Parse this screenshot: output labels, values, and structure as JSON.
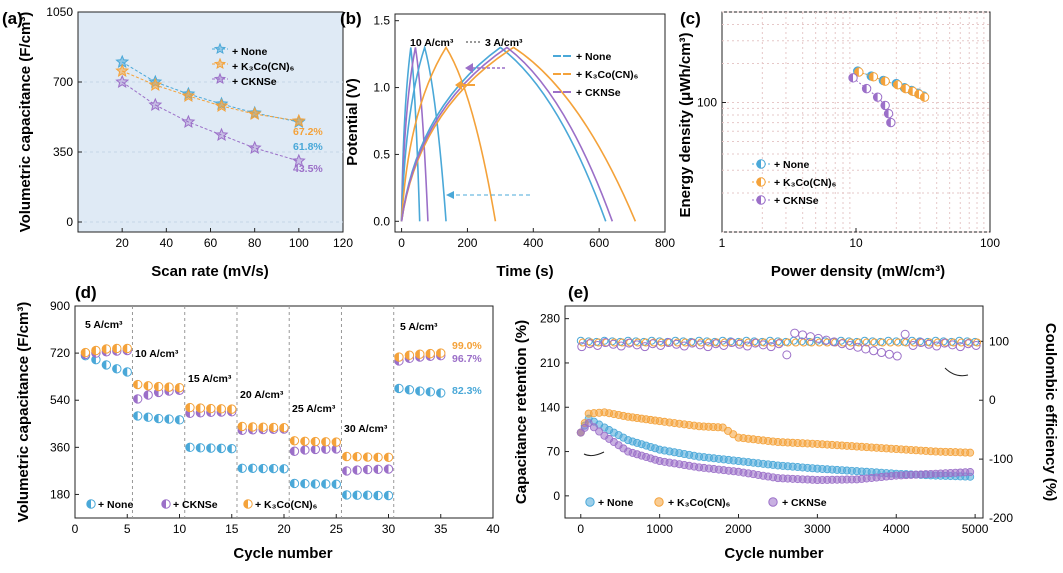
{
  "colors": {
    "none": "#4aa8d8",
    "k3co": "#f4a23a",
    "ckn": "#9b6fc8"
  },
  "panels": {
    "a": {
      "letter": "(a)"
    },
    "b": {
      "letter": "(b)"
    },
    "c": {
      "letter": "(c)"
    },
    "d": {
      "letter": "(d)"
    },
    "e": {
      "letter": "(e)"
    }
  },
  "chart_data": [
    {
      "id": "a",
      "type": "line",
      "title": "",
      "xlabel": "Scan rate (mV/s)",
      "ylabel": "Volumetric capacitance (F/cm³)",
      "xlim": [
        0,
        120
      ],
      "ylim": [
        -50,
        1050
      ],
      "xticks": [
        20,
        40,
        60,
        80,
        100,
        120
      ],
      "yticks": [
        0,
        350,
        700,
        1050
      ],
      "x": [
        20,
        35,
        50,
        65,
        80,
        100
      ],
      "series": [
        {
          "name": "+ None",
          "values": [
            800,
            700,
            640,
            590,
            545,
            500
          ],
          "label": "61.8%",
          "marker": "star"
        },
        {
          "name": "+ K₃Co(CN)₆",
          "values": [
            755,
            685,
            630,
            580,
            540,
            505
          ],
          "label": "67.2%",
          "marker": "star"
        },
        {
          "name": "+ CKNSe",
          "values": [
            700,
            585,
            500,
            435,
            370,
            305
          ],
          "label": "43.5%",
          "marker": "star"
        }
      ]
    },
    {
      "id": "b",
      "type": "line",
      "title": "",
      "xlabel": "Time (s)",
      "ylabel": "Potential (V)",
      "xlim": [
        -20,
        800
      ],
      "ylim": [
        -0.08,
        1.55
      ],
      "xticks": [
        0,
        200,
        400,
        600,
        800
      ],
      "yticks": [
        0.0,
        0.5,
        1.0,
        1.5
      ],
      "annotations": [
        "10 A/cm³",
        "3 A/cm³"
      ],
      "legend": [
        "+ None",
        "+ K₃Co(CN)₆",
        "+ CKNSe"
      ],
      "series": [
        {
          "group": "10",
          "series_color": "none",
          "x": [
            0,
            28,
            55
          ],
          "y": [
            0,
            1.3,
            0
          ]
        },
        {
          "group": "10",
          "series_color": "ckn",
          "x": [
            0,
            42,
            80
          ],
          "y": [
            0,
            1.3,
            0
          ]
        },
        {
          "group": "10",
          "series_color": "none",
          "x": [
            0,
            70,
            135
          ],
          "y": [
            0,
            1.3,
            0
          ]
        },
        {
          "group": "10",
          "series_color": "k3co",
          "x": [
            0,
            135,
            285
          ],
          "y": [
            0,
            1.3,
            0
          ]
        },
        {
          "group": "3",
          "series_color": "none",
          "x": [
            0,
            300,
            620
          ],
          "y": [
            0,
            1.3,
            0
          ]
        },
        {
          "group": "3",
          "series_color": "k3co",
          "x": [
            0,
            340,
            710
          ],
          "y": [
            0,
            1.3,
            0
          ]
        },
        {
          "group": "3",
          "series_color": "ckn",
          "x": [
            0,
            320,
            640
          ],
          "y": [
            0,
            1.3,
            0
          ]
        }
      ]
    },
    {
      "id": "c",
      "type": "scatter",
      "title": "",
      "xlabel": "Power density (mW/cm³)",
      "ylabel": "Energy density (μWh/cm³)",
      "xscale": "log",
      "yscale": "log",
      "xlim": [
        1,
        100
      ],
      "ylim": [
        10,
        500
      ],
      "xticks": [
        1,
        10,
        100
      ],
      "yticks": [
        100
      ],
      "series": [
        {
          "name": "+ None",
          "x": [
            10.3,
            13,
            16,
            20,
            23,
            26,
            29,
            32
          ],
          "y": [
            175,
            160,
            148,
            140,
            130,
            124,
            118,
            112
          ]
        },
        {
          "name": "+ K₃Co(CN)₆",
          "x": [
            10.5,
            13.5,
            16.5,
            20.5,
            23.5,
            26.5,
            29.5,
            32.5
          ],
          "y": [
            172,
            158,
            146,
            137,
            128,
            122,
            116,
            110
          ]
        },
        {
          "name": "+ CKNSe",
          "x": [
            9.5,
            12,
            14.5,
            16.5,
            17.5,
            18.2
          ],
          "y": [
            155,
            128,
            110,
            95,
            82,
            70
          ]
        }
      ]
    },
    {
      "id": "d",
      "type": "scatter",
      "title": "",
      "xlabel": "Cycle number",
      "ylabel": "Volumetric capacitance (F/cm³)",
      "xlim": [
        0,
        40
      ],
      "ylim": [
        90,
        900
      ],
      "xticks": [
        0,
        5,
        10,
        15,
        20,
        25,
        30,
        35,
        40
      ],
      "yticks": [
        180,
        360,
        540,
        720,
        900
      ],
      "rates": [
        "5 A/cm³",
        "10 A/cm³",
        "15 A/cm³",
        "20 A/cm³",
        "25 A/cm³",
        "30 A/cm³",
        "5 A/cm³"
      ],
      "retention": [
        "99.0%",
        "96.7%",
        "82.3%"
      ],
      "series": [
        {
          "name": "+ None",
          "values": [
            710,
            695,
            675,
            660,
            648,
            480,
            475,
            470,
            468,
            465,
            360,
            358,
            357,
            356,
            355,
            280,
            280,
            279,
            279,
            278,
            222,
            221,
            220,
            220,
            219,
            178,
            177,
            177,
            176,
            176,
            585,
            580,
            575,
            572,
            568
          ]
        },
        {
          "name": "+ CKNSe",
          "values": [
            715,
            720,
            725,
            728,
            730,
            545,
            560,
            570,
            575,
            578,
            490,
            492,
            494,
            495,
            496,
            425,
            427,
            428,
            429,
            430,
            345,
            350,
            352,
            353,
            354,
            270,
            273,
            275,
            276,
            277,
            690,
            700,
            705,
            708,
            710
          ]
        },
        {
          "name": "+ K₃Co(CN)₆",
          "values": [
            722,
            730,
            736,
            738,
            738,
            600,
            595,
            592,
            590,
            588,
            512,
            510,
            508,
            507,
            506,
            440,
            438,
            437,
            436,
            435,
            385,
            383,
            382,
            381,
            380,
            325,
            324,
            323,
            322,
            322,
            705,
            712,
            716,
            718,
            720
          ]
        }
      ]
    },
    {
      "id": "e",
      "type": "scatter",
      "title": "",
      "xlabel": "Cycle number",
      "ylabel": "Capacitance retention (%)",
      "y2label": "Coulombic efficiency (%)",
      "xlim": [
        -200,
        5100
      ],
      "ylim": [
        -35,
        300
      ],
      "y2lim": [
        -200,
        160
      ],
      "xticks": [
        0,
        1000,
        2000,
        3000,
        4000,
        5000
      ],
      "yticks": [
        0,
        70,
        140,
        210,
        280
      ],
      "y2ticks": [
        -200,
        -100,
        0,
        100
      ],
      "series": [
        {
          "name": "+ None",
          "x": [
            0,
            100,
            300,
            600,
            1000,
            1500,
            2000,
            2500,
            3000,
            3500,
            4000,
            4500,
            5000
          ],
          "y": [
            100,
            122,
            108,
            88,
            73,
            62,
            55,
            48,
            43,
            39,
            35,
            32,
            30
          ]
        },
        {
          "name": "+ K₃Co(CN)₆",
          "x": [
            0,
            100,
            300,
            600,
            1000,
            1500,
            1800,
            2000,
            2500,
            3000,
            3500,
            4000,
            4500,
            5000
          ],
          "y": [
            100,
            130,
            132,
            125,
            118,
            110,
            108,
            92,
            85,
            82,
            78,
            74,
            70,
            68
          ]
        },
        {
          "name": "+ CKNSe",
          "x": [
            0,
            100,
            300,
            600,
            1000,
            1500,
            2000,
            2500,
            3000,
            3500,
            4000,
            4500,
            5000
          ],
          "y": [
            100,
            115,
            95,
            70,
            55,
            45,
            38,
            28,
            25,
            26,
            32,
            35,
            38
          ]
        }
      ]
    }
  ]
}
